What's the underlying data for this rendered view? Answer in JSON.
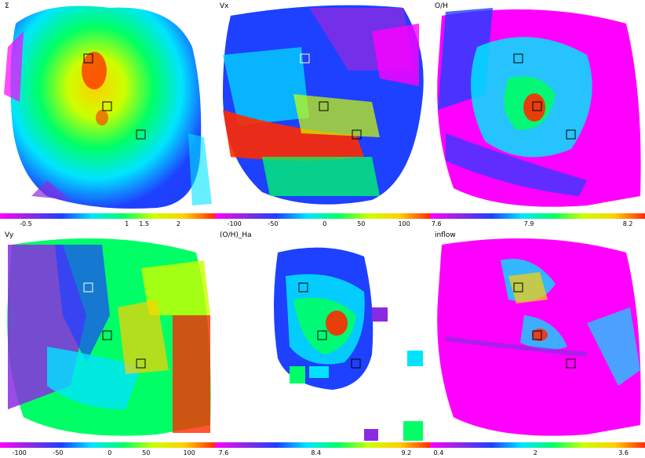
{
  "panels": [
    {
      "id": "sigma",
      "label": "Σ",
      "colormap": [
        "#ff00ff",
        "#8a2be2",
        "#1e40ff",
        "#00e5ff",
        "#00ff66",
        "#ccff00",
        "#ffd000",
        "#ff2a00"
      ],
      "ticks": [
        {
          "text": "-0.5",
          "frac": 0.12
        },
        {
          "text": "1",
          "frac": 0.59
        },
        {
          "text": "1.5",
          "frac": 0.67
        },
        {
          "text": "2",
          "frac": 0.83
        }
      ]
    },
    {
      "id": "vx",
      "label": "Vx",
      "colormap": [
        "#ff00ff",
        "#8a2be2",
        "#1e40ff",
        "#00e5ff",
        "#00ff66",
        "#ccff00",
        "#ffd000",
        "#ff2a00"
      ],
      "ticks": [
        {
          "text": "-100",
          "frac": 0.09
        },
        {
          "text": "-50",
          "frac": 0.27
        },
        {
          "text": "0",
          "frac": 0.51
        },
        {
          "text": "50",
          "frac": 0.68
        },
        {
          "text": "100",
          "frac": 0.88
        }
      ]
    },
    {
      "id": "oh",
      "label": "O/H",
      "colormap": [
        "#ff00ff",
        "#8a2be2",
        "#1e40ff",
        "#00e5ff",
        "#00ff66",
        "#ccff00",
        "#ffd000",
        "#ff2a00"
      ],
      "ticks": [
        {
          "text": "7.6",
          "frac": 0.03
        },
        {
          "text": "7.9",
          "frac": 0.46
        },
        {
          "text": "8.2",
          "frac": 0.92
        }
      ]
    },
    {
      "id": "vy",
      "label": "Vy",
      "colormap": [
        "#ff00ff",
        "#8a2be2",
        "#1e40ff",
        "#00e5ff",
        "#00ff66",
        "#ccff00",
        "#ffd000",
        "#ff2a00"
      ],
      "ticks": [
        {
          "text": "-100",
          "frac": 0.09
        },
        {
          "text": "-50",
          "frac": 0.27
        },
        {
          "text": "0",
          "frac": 0.51
        },
        {
          "text": "50",
          "frac": 0.68
        },
        {
          "text": "100",
          "frac": 0.88
        }
      ]
    },
    {
      "id": "oh_ha",
      "label": "(O/H)_Ha",
      "colormap": [
        "#ff00ff",
        "#8a2be2",
        "#1e40ff",
        "#00e5ff",
        "#00ff66",
        "#ccff00",
        "#ffd000",
        "#ff2a00"
      ],
      "ticks": [
        {
          "text": "7.6",
          "frac": 0.04
        },
        {
          "text": "8.4",
          "frac": 0.47
        },
        {
          "text": "9.2",
          "frac": 0.89
        }
      ]
    },
    {
      "id": "inflow",
      "label": "inflow",
      "colormap": [
        "#ff00ff",
        "#8a2be2",
        "#1e40ff",
        "#00e5ff",
        "#00ff66",
        "#ccff00",
        "#ffd000",
        "#ff2a00"
      ],
      "ticks": [
        {
          "text": "0.4",
          "frac": 0.04
        },
        {
          "text": "2",
          "frac": 0.49
        },
        {
          "text": "3.6",
          "frac": 0.9
        }
      ]
    }
  ]
}
